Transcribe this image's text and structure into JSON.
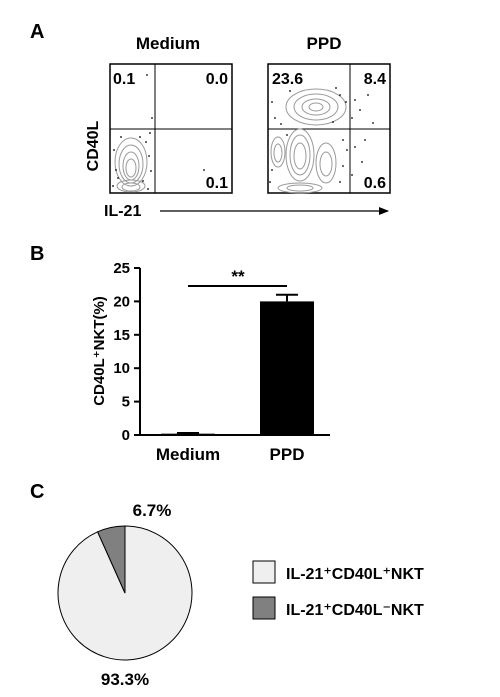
{
  "panels": {
    "a": {
      "label": "A",
      "xlabel": "IL-21",
      "ylabel": "CD40L",
      "plots": [
        {
          "title": "Medium",
          "quadrants": {
            "ul": "0.1",
            "ur": "0.0",
            "lr": "0.1"
          }
        },
        {
          "title": "PPD",
          "quadrants": {
            "ul": "23.6",
            "ur": "8.4",
            "lr": "0.6"
          }
        }
      ]
    },
    "b": {
      "label": "B",
      "significance": "**"
    },
    "c": {
      "label": "C"
    }
  },
  "colors": {
    "bar_medium": "#000000",
    "bar_ppd": "#000000",
    "contour": "#9a9a9a",
    "pie_major": "#efefef",
    "pie_minor": "#808080"
  },
  "chart_data": [
    {
      "type": "bar",
      "panel": "B",
      "categories": [
        "Medium",
        "PPD"
      ],
      "values": [
        0.2,
        20.0
      ],
      "error": [
        0.1,
        1.0
      ],
      "ylabel": "CD40L⁺NKT(%)",
      "ylim": [
        0,
        25
      ],
      "yticks": [
        0,
        5,
        10,
        15,
        20,
        25
      ],
      "annotation": "**"
    },
    {
      "type": "pie",
      "panel": "C",
      "slices": [
        {
          "name": "IL-21⁺CD40L⁺NKT",
          "value": 93.3,
          "label": "93.3%",
          "color": "#efefef"
        },
        {
          "name": "IL-21⁺CD40L⁻NKT",
          "value": 6.7,
          "label": "6.7%",
          "color": "#808080"
        }
      ]
    }
  ]
}
